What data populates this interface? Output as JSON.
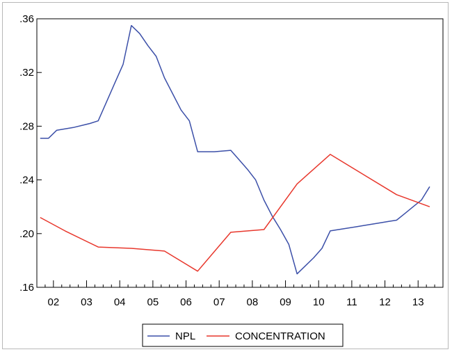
{
  "chart_data": {
    "type": "line",
    "title": "",
    "xlabel": "",
    "ylabel": "",
    "x_tick_labels": [
      "02",
      "03",
      "04",
      "05",
      "06",
      "07",
      "08",
      "09",
      "10",
      "11",
      "12",
      "13"
    ],
    "y_tick_labels": [
      ".16",
      ".20",
      ".24",
      ".28",
      ".32",
      ".36"
    ],
    "y_ticks": [
      0.16,
      0.2,
      0.24,
      0.28,
      0.32,
      0.36
    ],
    "ylim": [
      0.16,
      0.36
    ],
    "xlim": [
      2001.5,
      2013.75
    ],
    "grid": false,
    "legend": "bottom-center",
    "series": [
      {
        "name": "NPL",
        "color": "#3b4fa8",
        "points": [
          [
            2001.6,
            0.271
          ],
          [
            2001.85,
            0.271
          ],
          [
            2002.1,
            0.277
          ],
          [
            2002.6,
            0.279
          ],
          [
            2003.1,
            0.282
          ],
          [
            2003.35,
            0.284
          ],
          [
            2003.6,
            0.298
          ],
          [
            2003.85,
            0.312
          ],
          [
            2004.1,
            0.326
          ],
          [
            2004.35,
            0.355
          ],
          [
            2004.6,
            0.349
          ],
          [
            2004.85,
            0.34
          ],
          [
            2005.1,
            0.332
          ],
          [
            2005.35,
            0.316
          ],
          [
            2005.6,
            0.304
          ],
          [
            2005.85,
            0.292
          ],
          [
            2006.1,
            0.284
          ],
          [
            2006.35,
            0.261
          ],
          [
            2006.85,
            0.261
          ],
          [
            2007.35,
            0.262
          ],
          [
            2007.6,
            0.255
          ],
          [
            2007.85,
            0.248
          ],
          [
            2008.1,
            0.24
          ],
          [
            2008.35,
            0.225
          ],
          [
            2008.6,
            0.213
          ],
          [
            2008.85,
            0.203
          ],
          [
            2009.1,
            0.192
          ],
          [
            2009.35,
            0.17
          ],
          [
            2009.6,
            0.176
          ],
          [
            2009.85,
            0.182
          ],
          [
            2010.1,
            0.189
          ],
          [
            2010.35,
            0.202
          ],
          [
            2010.85,
            0.204
          ],
          [
            2011.1,
            0.205
          ],
          [
            2011.35,
            0.206
          ],
          [
            2011.85,
            0.208
          ],
          [
            2012.1,
            0.209
          ],
          [
            2012.35,
            0.21
          ],
          [
            2012.6,
            0.215
          ],
          [
            2012.85,
            0.22
          ],
          [
            2013.1,
            0.225
          ],
          [
            2013.35,
            0.235
          ]
        ]
      },
      {
        "name": "CONCENTRATION",
        "color": "#e8372c",
        "points": [
          [
            2001.6,
            0.212
          ],
          [
            2002.35,
            0.202
          ],
          [
            2003.35,
            0.19
          ],
          [
            2004.35,
            0.189
          ],
          [
            2005.35,
            0.187
          ],
          [
            2006.35,
            0.172
          ],
          [
            2007.35,
            0.201
          ],
          [
            2008.35,
            0.203
          ],
          [
            2009.35,
            0.237
          ],
          [
            2010.35,
            0.259
          ],
          [
            2011.35,
            0.244
          ],
          [
            2012.35,
            0.229
          ],
          [
            2013.35,
            0.22
          ]
        ]
      }
    ]
  }
}
